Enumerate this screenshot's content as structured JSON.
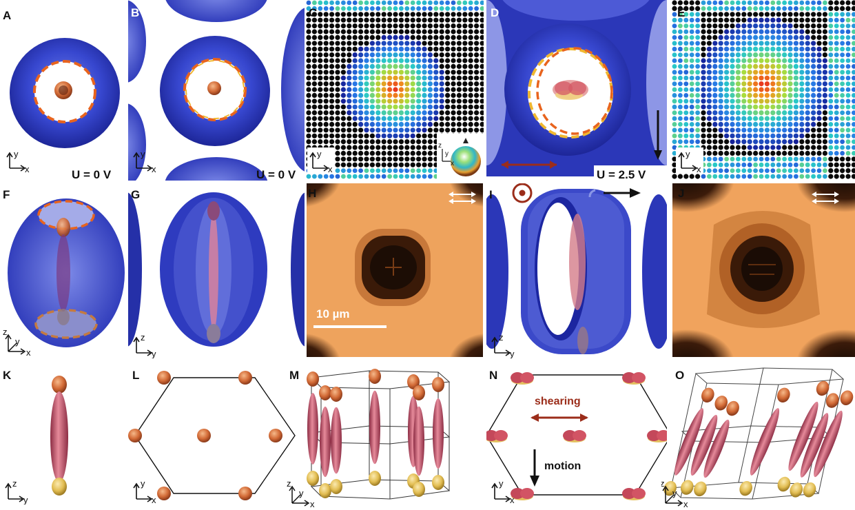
{
  "panels": [
    {
      "letter": "A"
    },
    {
      "letter": "B"
    },
    {
      "letter": "C"
    },
    {
      "letter": "D"
    },
    {
      "letter": "E"
    },
    {
      "letter": "F"
    },
    {
      "letter": "G"
    },
    {
      "letter": "H"
    },
    {
      "letter": "I"
    },
    {
      "letter": "J"
    },
    {
      "letter": "K"
    },
    {
      "letter": "L"
    },
    {
      "letter": "M"
    },
    {
      "letter": "N"
    },
    {
      "letter": "O"
    }
  ],
  "voltage": {
    "a": "U = 0 V",
    "b": "U = 0 V",
    "d": "U = 2.5 V"
  },
  "axes": {
    "x": "x",
    "y": "y",
    "z": "z"
  },
  "scale_bar": "10 µm",
  "annotations": {
    "shearing": "shearing",
    "motion": "motion"
  },
  "colors": {
    "shell_blue": "#2f3fc4",
    "dark_bg": "#0d0a08",
    "micrograph_orange": "#f0a25c",
    "dashed_orange": "#e8641e",
    "dashed_yellow": "#f0b830",
    "preimage_pink": "#c8586c",
    "preimage_yellow": "#e6c25a",
    "preimage_orange": "#d2692e",
    "arrow_brown": "#9b2d1a"
  },
  "icons": [
    "polarizer-double-arrow-icon",
    "out-of-plane-target-icon",
    "motion-arrow-icon",
    "shearing-double-arrow-icon",
    "color-sphere-legend-icon"
  ]
}
